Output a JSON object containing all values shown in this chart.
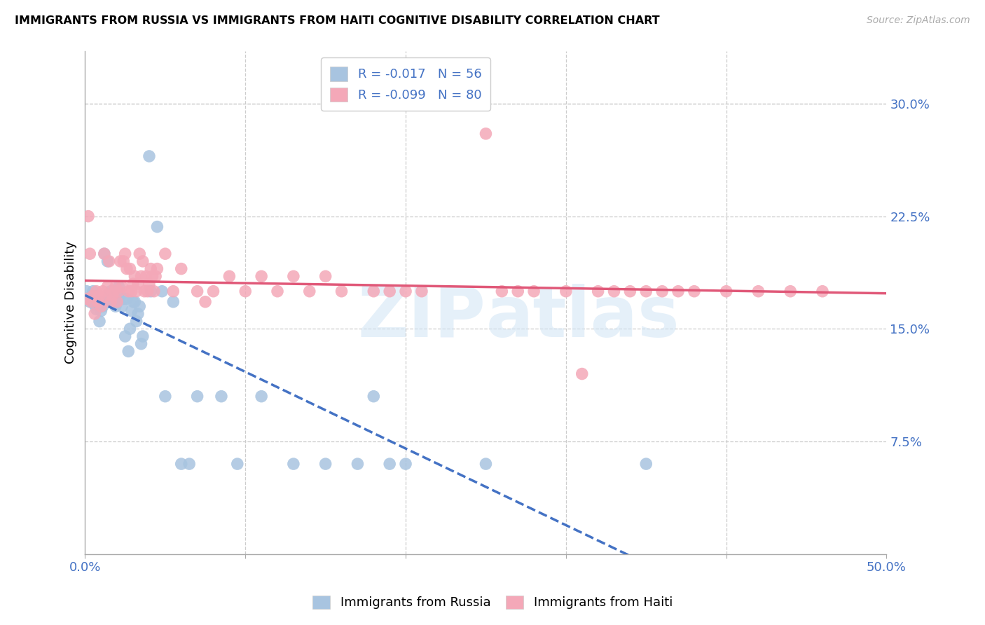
{
  "title": "IMMIGRANTS FROM RUSSIA VS IMMIGRANTS FROM HAITI COGNITIVE DISABILITY CORRELATION CHART",
  "source": "Source: ZipAtlas.com",
  "ylabel": "Cognitive Disability",
  "right_yticks": [
    "30.0%",
    "22.5%",
    "15.0%",
    "7.5%"
  ],
  "right_ytick_vals": [
    0.3,
    0.225,
    0.15,
    0.075
  ],
  "russia_color": "#a8c4e0",
  "haiti_color": "#f4a8b8",
  "russia_line_color": "#4472c4",
  "haiti_line_color": "#e05878",
  "russia_R": -0.017,
  "russia_N": 56,
  "haiti_R": -0.099,
  "haiti_N": 80,
  "xlim": [
    0.0,
    0.5
  ],
  "ylim": [
    0.0,
    0.335
  ],
  "russia_x": [
    0.001,
    0.002,
    0.003,
    0.004,
    0.005,
    0.006,
    0.007,
    0.008,
    0.009,
    0.01,
    0.011,
    0.012,
    0.013,
    0.014,
    0.015,
    0.016,
    0.017,
    0.018,
    0.019,
    0.02,
    0.021,
    0.022,
    0.023,
    0.024,
    0.025,
    0.026,
    0.027,
    0.028,
    0.029,
    0.03,
    0.031,
    0.032,
    0.033,
    0.034,
    0.035,
    0.036,
    0.04,
    0.041,
    0.045,
    0.048,
    0.05,
    0.055,
    0.06,
    0.065,
    0.07,
    0.085,
    0.095,
    0.11,
    0.13,
    0.15,
    0.17,
    0.18,
    0.19,
    0.2,
    0.25,
    0.35
  ],
  "russia_y": [
    0.175,
    0.17,
    0.168,
    0.172,
    0.175,
    0.166,
    0.163,
    0.168,
    0.155,
    0.162,
    0.165,
    0.2,
    0.168,
    0.195,
    0.172,
    0.175,
    0.168,
    0.172,
    0.165,
    0.168,
    0.178,
    0.172,
    0.165,
    0.17,
    0.145,
    0.17,
    0.135,
    0.15,
    0.162,
    0.168,
    0.168,
    0.155,
    0.16,
    0.165,
    0.14,
    0.145,
    0.265,
    0.175,
    0.218,
    0.175,
    0.105,
    0.168,
    0.06,
    0.06,
    0.105,
    0.105,
    0.06,
    0.105,
    0.06,
    0.06,
    0.06,
    0.105,
    0.06,
    0.06,
    0.06,
    0.06
  ],
  "haiti_x": [
    0.001,
    0.002,
    0.003,
    0.004,
    0.005,
    0.006,
    0.007,
    0.008,
    0.009,
    0.01,
    0.011,
    0.012,
    0.013,
    0.014,
    0.015,
    0.016,
    0.017,
    0.018,
    0.019,
    0.02,
    0.021,
    0.022,
    0.023,
    0.024,
    0.025,
    0.026,
    0.027,
    0.028,
    0.029,
    0.03,
    0.031,
    0.032,
    0.033,
    0.034,
    0.035,
    0.036,
    0.037,
    0.038,
    0.039,
    0.04,
    0.041,
    0.042,
    0.043,
    0.044,
    0.045,
    0.05,
    0.055,
    0.06,
    0.07,
    0.075,
    0.08,
    0.09,
    0.1,
    0.11,
    0.12,
    0.13,
    0.14,
    0.15,
    0.16,
    0.18,
    0.19,
    0.2,
    0.21,
    0.25,
    0.26,
    0.27,
    0.28,
    0.3,
    0.31,
    0.32,
    0.33,
    0.34,
    0.35,
    0.36,
    0.37,
    0.38,
    0.4,
    0.42,
    0.44,
    0.46
  ],
  "haiti_y": [
    0.17,
    0.225,
    0.2,
    0.168,
    0.172,
    0.16,
    0.175,
    0.168,
    0.172,
    0.165,
    0.175,
    0.2,
    0.172,
    0.178,
    0.195,
    0.168,
    0.172,
    0.175,
    0.178,
    0.168,
    0.175,
    0.195,
    0.178,
    0.195,
    0.2,
    0.19,
    0.175,
    0.19,
    0.175,
    0.18,
    0.185,
    0.175,
    0.18,
    0.2,
    0.185,
    0.195,
    0.175,
    0.185,
    0.175,
    0.18,
    0.19,
    0.185,
    0.175,
    0.185,
    0.19,
    0.2,
    0.175,
    0.19,
    0.175,
    0.168,
    0.175,
    0.185,
    0.175,
    0.185,
    0.175,
    0.185,
    0.175,
    0.185,
    0.175,
    0.175,
    0.175,
    0.175,
    0.175,
    0.28,
    0.175,
    0.175,
    0.175,
    0.175,
    0.12,
    0.175,
    0.175,
    0.175,
    0.175,
    0.175,
    0.175,
    0.175,
    0.175,
    0.175,
    0.175,
    0.175
  ]
}
